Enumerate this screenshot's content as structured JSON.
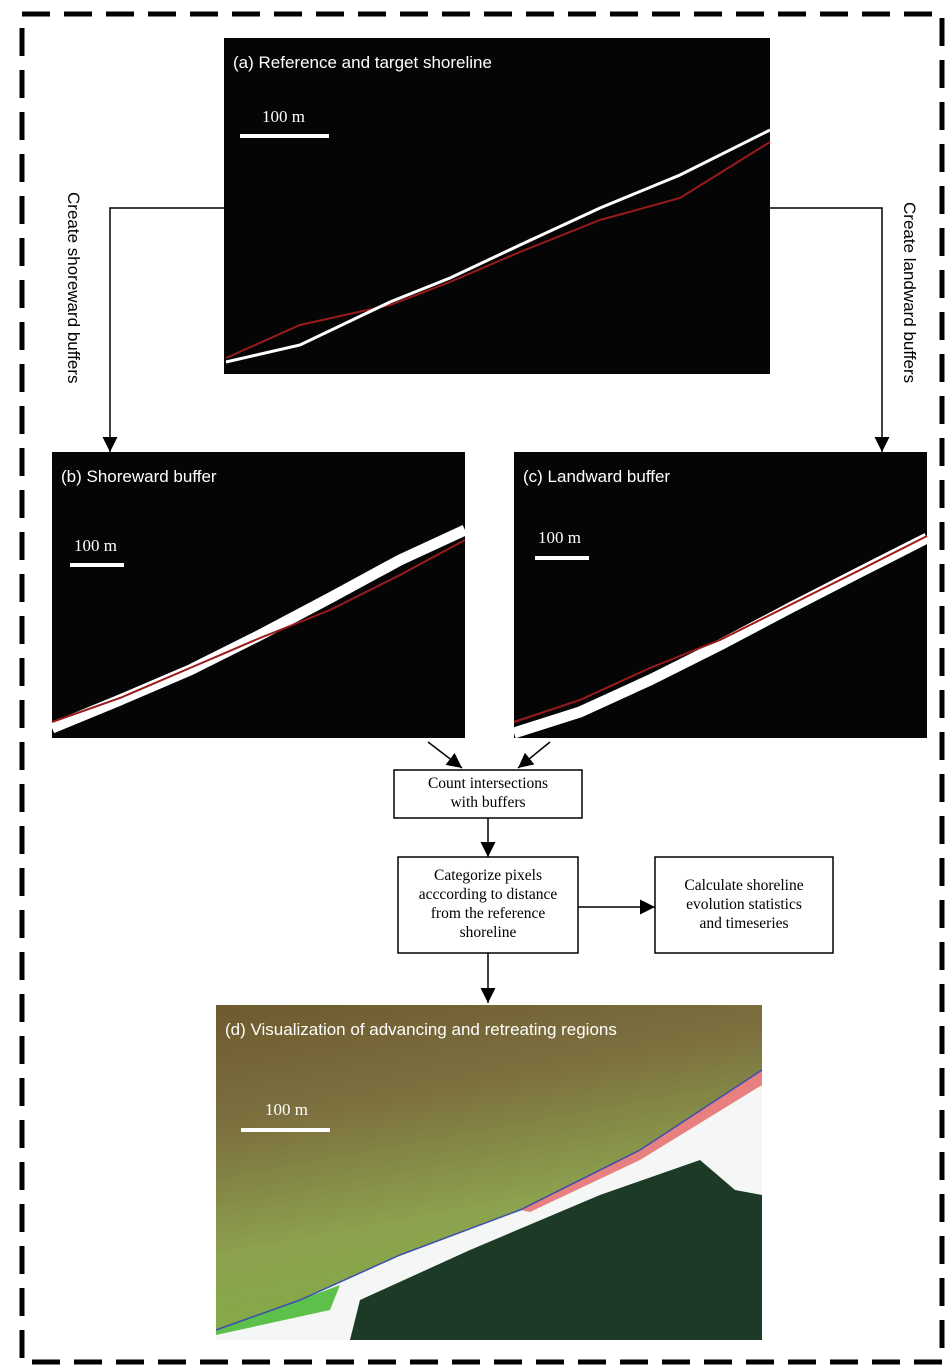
{
  "panels": [
    {
      "label": "(a) Reference and target shoreline",
      "scale": "100 m"
    },
    {
      "label": "(b) Shoreward buffer",
      "scale": "100 m"
    },
    {
      "label": "(c) Landward buffer",
      "scale": "100 m"
    },
    {
      "label": "(d) Visualization of advancing and retreating regions",
      "scale": "100 m"
    }
  ],
  "arrows": [
    "Create shoreward buffers",
    "Create landward buffers"
  ],
  "boxes": [
    {
      "lines": [
        "Count intersections",
        "with buffers"
      ]
    },
    {
      "lines": [
        "Categorize pixels",
        "acccording to distance",
        "from the reference",
        "shoreline"
      ]
    },
    {
      "lines": [
        "Calculate shoreline",
        "evolution statistics",
        "and timeseries"
      ]
    }
  ]
}
